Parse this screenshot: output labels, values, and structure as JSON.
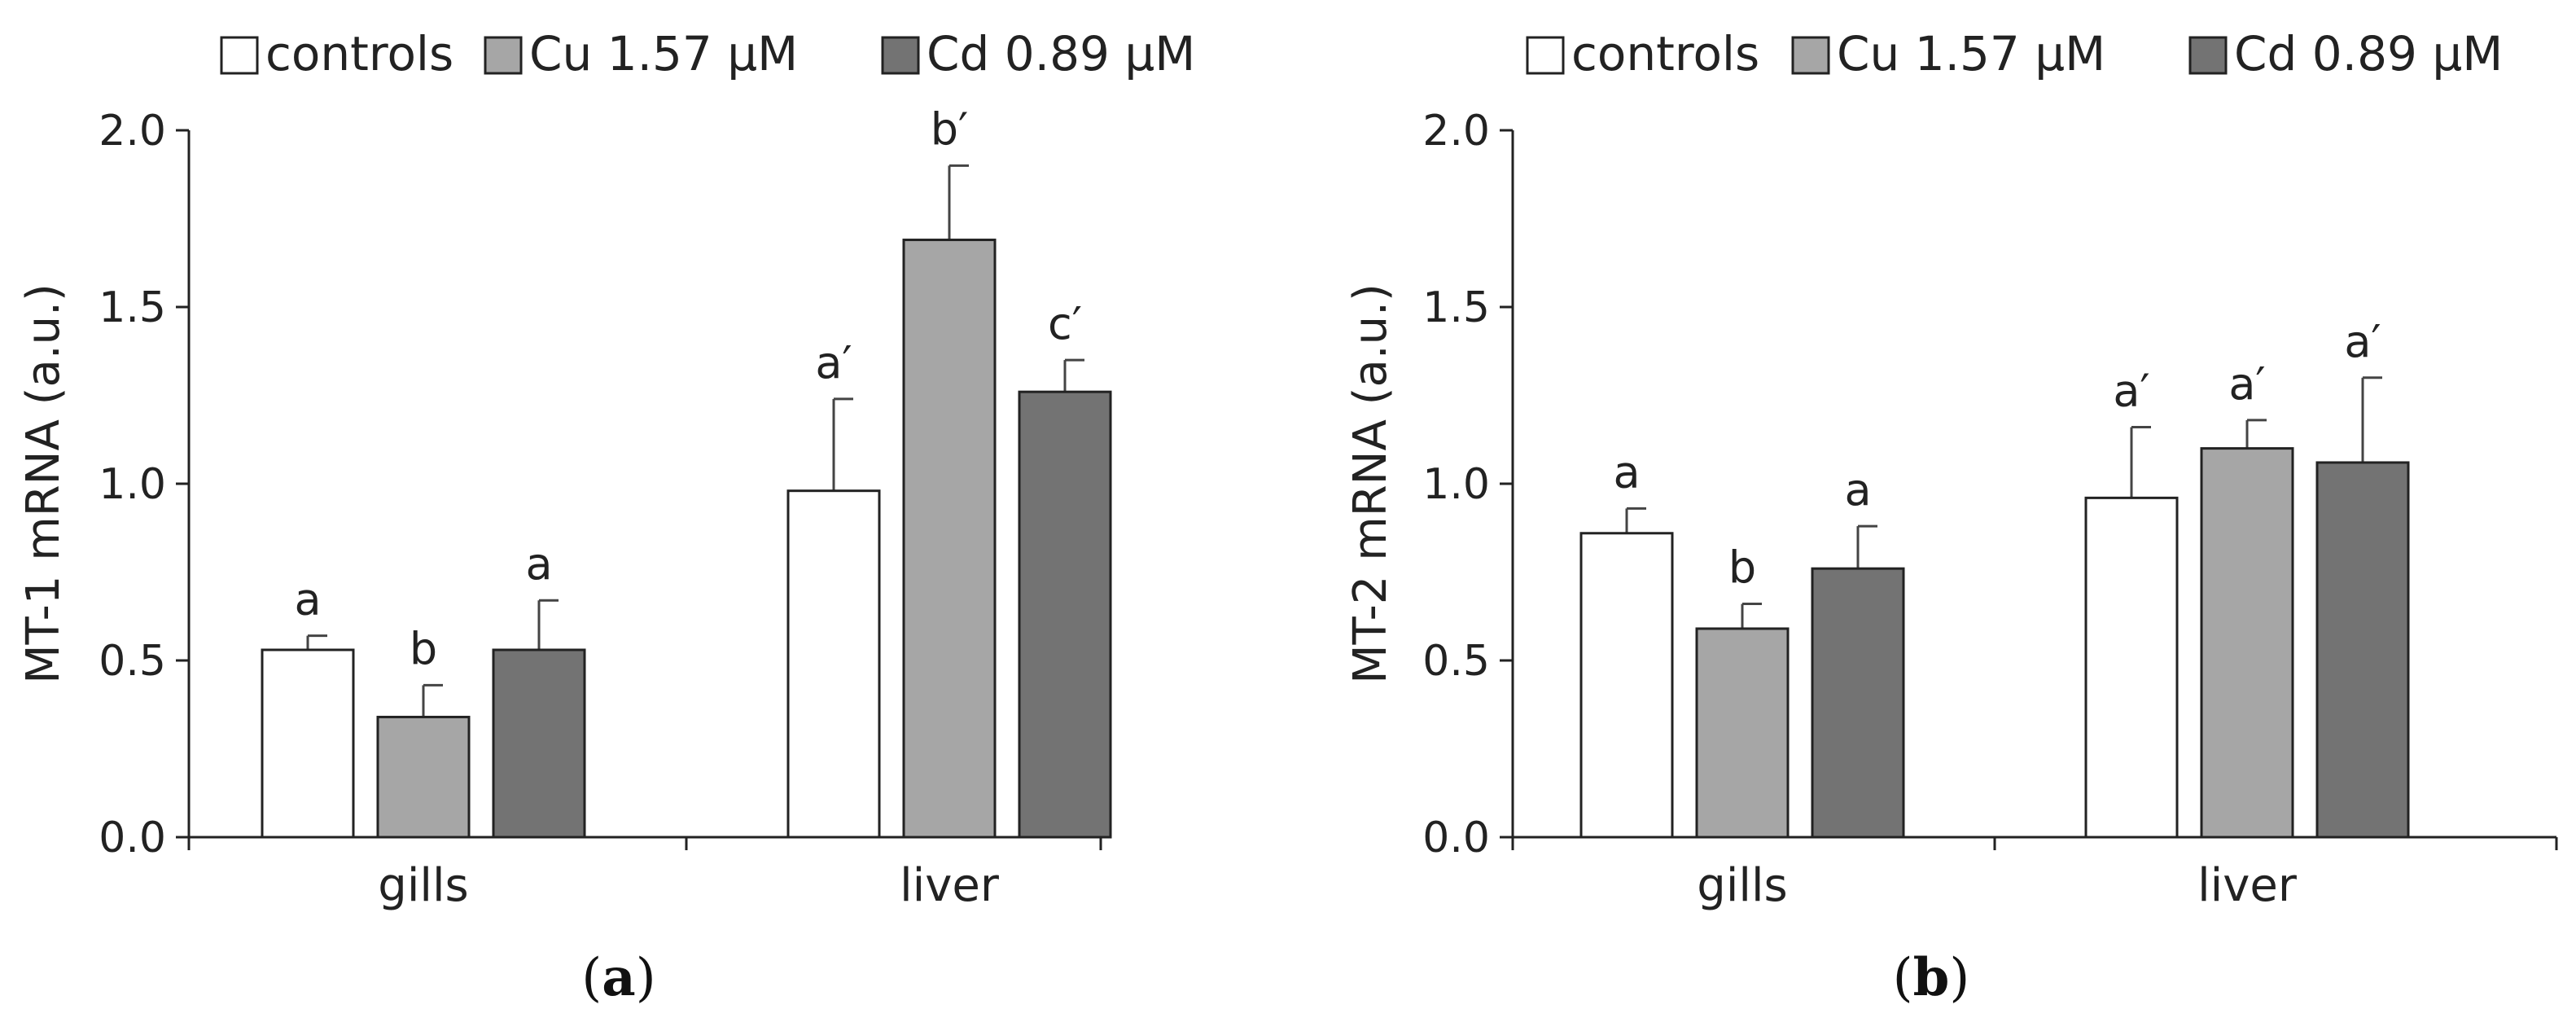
{
  "chart_data": [
    {
      "type": "bar",
      "panel_label": "a",
      "ylabel": "MT-1 mRNA (a.u.)",
      "xlabel": "",
      "ylim": [
        0,
        2.0
      ],
      "yticks": [
        "0.0",
        "0.5",
        "1.0",
        "1.5",
        "2.0"
      ],
      "categories": [
        "gills",
        "liver"
      ],
      "series": [
        {
          "name": "controls",
          "color": "#ffffff",
          "values": [
            0.53,
            0.98
          ],
          "errors": [
            0.04,
            0.26
          ],
          "labels": [
            "a",
            "a′"
          ]
        },
        {
          "name": "Cu 1.57 μM",
          "color": "#a6a6a6",
          "values": [
            0.34,
            1.69
          ],
          "errors": [
            0.09,
            0.21
          ],
          "labels": [
            "b",
            "b′"
          ]
        },
        {
          "name": "Cd 0.89 μM",
          "color": "#737373",
          "values": [
            0.53,
            1.26
          ],
          "errors": [
            0.14,
            0.09
          ],
          "labels": [
            "a",
            "c′"
          ]
        }
      ]
    },
    {
      "type": "bar",
      "panel_label": "b",
      "ylabel": "MT-2 mRNA (a.u.)",
      "xlabel": "",
      "ylim": [
        0,
        2.0
      ],
      "yticks": [
        "0.0",
        "0.5",
        "1.0",
        "1.5",
        "2.0"
      ],
      "categories": [
        "gills",
        "liver"
      ],
      "series": [
        {
          "name": "controls",
          "color": "#ffffff",
          "values": [
            0.86,
            0.96
          ],
          "errors": [
            0.07,
            0.2
          ],
          "labels": [
            "a",
            "a′"
          ]
        },
        {
          "name": "Cu 1.57 μM",
          "color": "#a6a6a6",
          "values": [
            0.59,
            1.1
          ],
          "errors": [
            0.07,
            0.08
          ],
          "labels": [
            "b",
            "a′"
          ]
        },
        {
          "name": "Cd 0.89 μM",
          "color": "#737373",
          "values": [
            0.76,
            1.06
          ],
          "errors": [
            0.12,
            0.24
          ],
          "labels": [
            "a",
            "a′"
          ]
        }
      ]
    }
  ]
}
